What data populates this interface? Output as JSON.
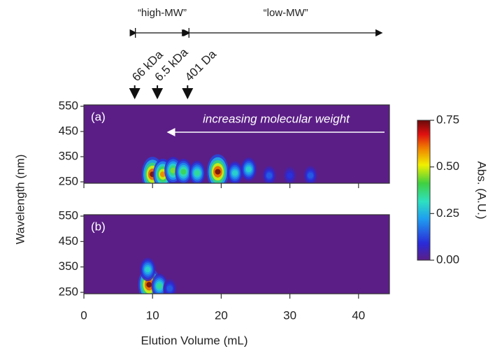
{
  "chart_data": {
    "type": "heatmap",
    "xlabel": "Elution Volume (mL)",
    "ylabel": "Wavelength (nm)",
    "colorbar_label": "Abs. (A.U.)",
    "xlim": [
      0,
      44.5
    ],
    "xticks": [
      0,
      10,
      20,
      30,
      40
    ],
    "clim": [
      0,
      0.75
    ],
    "cticks": [
      {
        "value": 0,
        "label": "0.00"
      },
      0.25,
      {
        "value": 0.5,
        "label": "0.50"
      },
      0.75
    ],
    "ranges": [
      {
        "label": "“high-MW”",
        "from": 7.5,
        "to": 15.3
      },
      {
        "label": "“low-MW”",
        "from": 15.3,
        "to": 43.5
      }
    ],
    "markers": [
      {
        "label": "66 kDa",
        "x": 7.4
      },
      {
        "label": "6.5 kDa",
        "x": 10.7
      },
      {
        "label": "401 Da",
        "x": 15.1
      }
    ],
    "panels": [
      {
        "label": "(a)",
        "annotation": "increasing molecular weight",
        "ylim": [
          250,
          550
        ],
        "yticks": [
          250,
          350,
          450,
          550
        ],
        "hotspots": [
          {
            "x": 10,
            "y": 280,
            "value": 0.75
          },
          {
            "x": 11.5,
            "y": 280,
            "value": 0.6
          },
          {
            "x": 13,
            "y": 295,
            "value": 0.45
          },
          {
            "x": 14.5,
            "y": 290,
            "value": 0.4
          },
          {
            "x": 16.5,
            "y": 285,
            "value": 0.35
          },
          {
            "x": 19.5,
            "y": 290,
            "value": 0.75
          },
          {
            "x": 22,
            "y": 285,
            "value": 0.3
          },
          {
            "x": 24,
            "y": 300,
            "value": 0.3
          },
          {
            "x": 27,
            "y": 275,
            "value": 0.15
          },
          {
            "x": 30,
            "y": 275,
            "value": 0.1
          },
          {
            "x": 33,
            "y": 275,
            "value": 0.15
          }
        ]
      },
      {
        "label": "(b)",
        "ylim": [
          250,
          550
        ],
        "yticks": [
          250,
          350,
          450,
          550
        ],
        "hotspots": [
          {
            "x": 9.5,
            "y": 280,
            "value": 0.75
          },
          {
            "x": 9.3,
            "y": 340,
            "value": 0.3
          },
          {
            "x": 11,
            "y": 275,
            "value": 0.35
          },
          {
            "x": 12.5,
            "y": 265,
            "value": 0.15
          }
        ]
      }
    ]
  }
}
